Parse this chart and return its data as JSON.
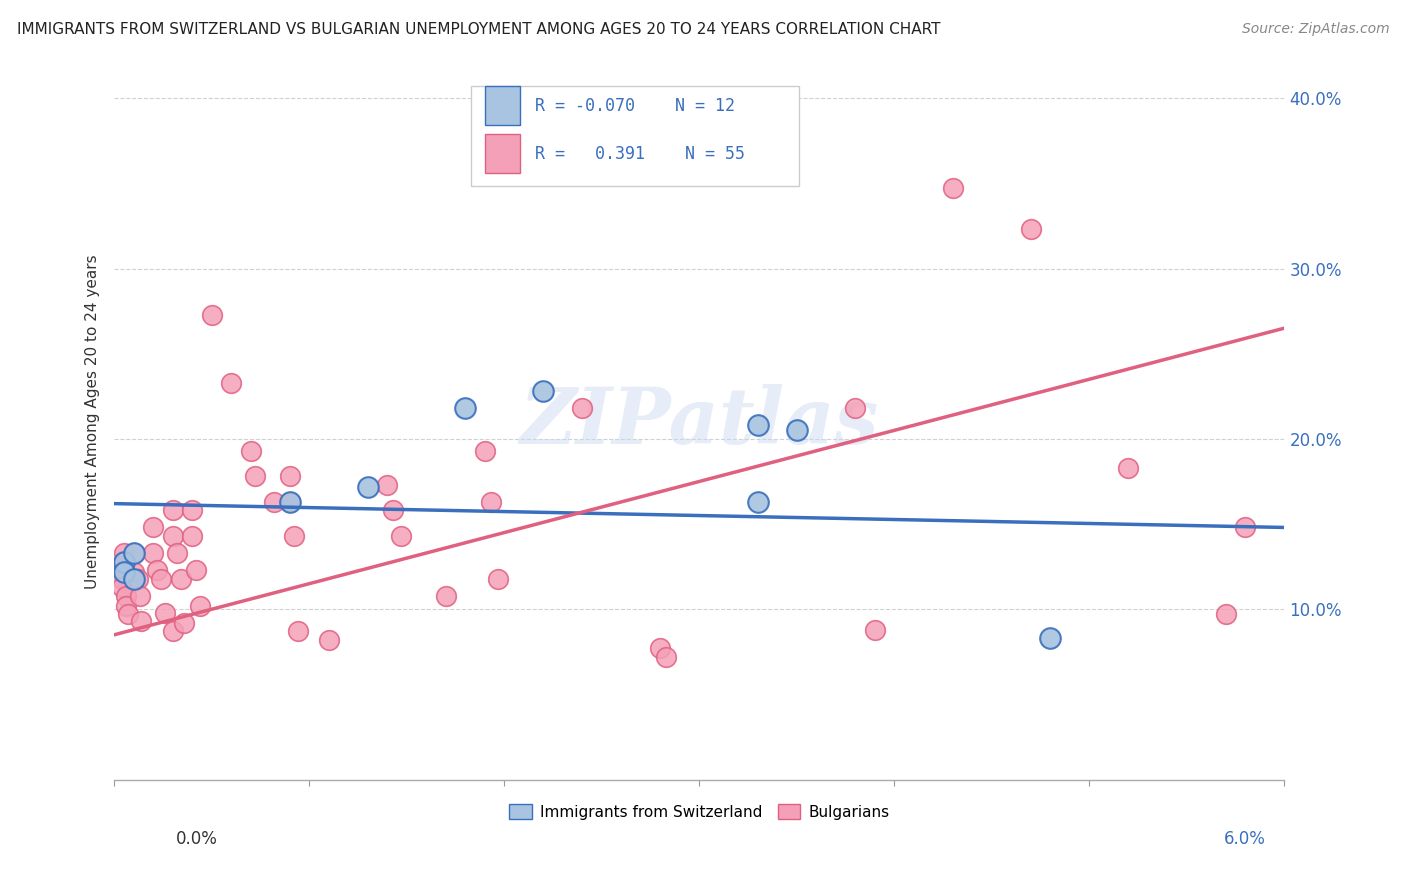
{
  "title": "IMMIGRANTS FROM SWITZERLAND VS BULGARIAN UNEMPLOYMENT AMONG AGES 20 TO 24 YEARS CORRELATION CHART",
  "source": "Source: ZipAtlas.com",
  "ylabel": "Unemployment Among Ages 20 to 24 years",
  "legend_label1": "Immigrants from Switzerland",
  "legend_label2": "Bulgarians",
  "R1": "-0.070",
  "N1": "12",
  "R2": "0.391",
  "N2": "55",
  "blue_color": "#a8c4e0",
  "blue_line_color": "#3a6fbe",
  "pink_color": "#f4a0b8",
  "pink_line_color": "#e06080",
  "blue_dots": [
    [
      0.0005,
      0.128
    ],
    [
      0.0005,
      0.122
    ],
    [
      0.001,
      0.133
    ],
    [
      0.001,
      0.118
    ],
    [
      0.009,
      0.163
    ],
    [
      0.013,
      0.172
    ],
    [
      0.018,
      0.218
    ],
    [
      0.022,
      0.228
    ],
    [
      0.033,
      0.208
    ],
    [
      0.033,
      0.163
    ],
    [
      0.035,
      0.205
    ],
    [
      0.048,
      0.083
    ]
  ],
  "pink_dots": [
    [
      0.0003,
      0.123
    ],
    [
      0.0004,
      0.118
    ],
    [
      0.0004,
      0.113
    ],
    [
      0.0005,
      0.133
    ],
    [
      0.0005,
      0.128
    ],
    [
      0.0006,
      0.108
    ],
    [
      0.0006,
      0.102
    ],
    [
      0.0007,
      0.097
    ],
    [
      0.001,
      0.133
    ],
    [
      0.001,
      0.122
    ],
    [
      0.0012,
      0.118
    ],
    [
      0.0013,
      0.108
    ],
    [
      0.0014,
      0.093
    ],
    [
      0.002,
      0.148
    ],
    [
      0.002,
      0.133
    ],
    [
      0.0022,
      0.123
    ],
    [
      0.0024,
      0.118
    ],
    [
      0.0026,
      0.098
    ],
    [
      0.003,
      0.087
    ],
    [
      0.003,
      0.158
    ],
    [
      0.003,
      0.143
    ],
    [
      0.0032,
      0.133
    ],
    [
      0.0034,
      0.118
    ],
    [
      0.0036,
      0.092
    ],
    [
      0.004,
      0.158
    ],
    [
      0.004,
      0.143
    ],
    [
      0.0042,
      0.123
    ],
    [
      0.0044,
      0.102
    ],
    [
      0.005,
      0.273
    ],
    [
      0.006,
      0.233
    ],
    [
      0.007,
      0.193
    ],
    [
      0.0072,
      0.178
    ],
    [
      0.0082,
      0.163
    ],
    [
      0.009,
      0.178
    ],
    [
      0.009,
      0.163
    ],
    [
      0.0092,
      0.143
    ],
    [
      0.0094,
      0.087
    ],
    [
      0.011,
      0.082
    ],
    [
      0.014,
      0.173
    ],
    [
      0.0143,
      0.158
    ],
    [
      0.0147,
      0.143
    ],
    [
      0.017,
      0.108
    ],
    [
      0.019,
      0.193
    ],
    [
      0.0193,
      0.163
    ],
    [
      0.0197,
      0.118
    ],
    [
      0.024,
      0.218
    ],
    [
      0.028,
      0.077
    ],
    [
      0.0283,
      0.072
    ],
    [
      0.038,
      0.218
    ],
    [
      0.039,
      0.088
    ],
    [
      0.043,
      0.347
    ],
    [
      0.047,
      0.323
    ],
    [
      0.052,
      0.183
    ],
    [
      0.057,
      0.097
    ],
    [
      0.058,
      0.148
    ]
  ],
  "xlim": [
    0.0,
    0.06
  ],
  "ylim": [
    0.0,
    0.42
  ],
  "blue_line_x0": 0.0,
  "blue_line_y0": 0.162,
  "blue_line_x1": 0.06,
  "blue_line_y1": 0.148,
  "pink_line_x0": 0.0,
  "pink_line_y0": 0.085,
  "pink_line_x1": 0.06,
  "pink_line_y1": 0.265,
  "background_color": "#ffffff",
  "grid_color": "#cccccc"
}
